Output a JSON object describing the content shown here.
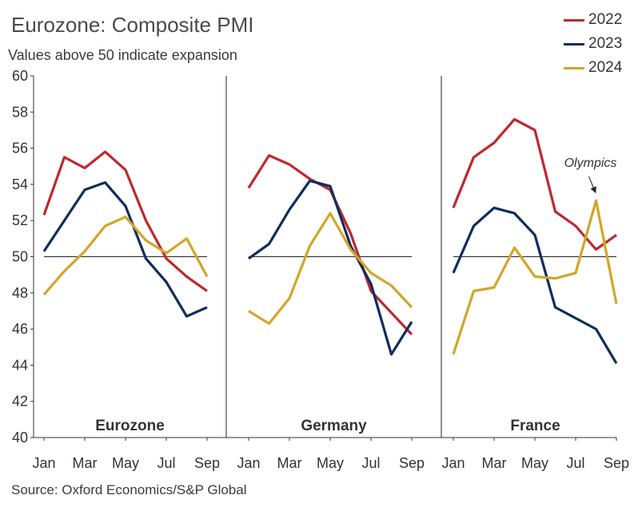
{
  "chart_data": {
    "type": "line",
    "title": "Eurozone: Composite PMI",
    "subtitle": "Values above 50 indicate expansion",
    "source": "Source: Oxford Economics/S&P Global",
    "ylim": [
      40,
      60
    ],
    "yticks": [
      "40",
      "42",
      "44",
      "46",
      "48",
      "50",
      "52",
      "54",
      "56",
      "58",
      "60"
    ],
    "reference_line": 50,
    "xticks": [
      "Jan",
      "Mar",
      "May",
      "Jul",
      "Sep"
    ],
    "categories": [
      "Jan",
      "Feb",
      "Mar",
      "Apr",
      "May",
      "Jun",
      "Jul",
      "Aug",
      "Sep"
    ],
    "legend_position": "top-right",
    "series_names": [
      "2022",
      "2023",
      "2024"
    ],
    "colors": {
      "2022": "#c1272d",
      "2023": "#0d2d5e",
      "2024": "#d4a52a"
    },
    "panels": [
      {
        "name": "Eurozone",
        "series": [
          {
            "name": "2022",
            "values": [
              52.3,
              55.5,
              54.9,
              55.8,
              54.8,
              52.0,
              49.9,
              48.9,
              48.1
            ]
          },
          {
            "name": "2023",
            "values": [
              50.3,
              52.0,
              53.7,
              54.1,
              52.8,
              49.9,
              48.6,
              46.7,
              47.2
            ]
          },
          {
            "name": "2024",
            "values": [
              47.9,
              49.2,
              50.3,
              51.7,
              52.2,
              50.9,
              50.2,
              51.0,
              48.9
            ]
          }
        ]
      },
      {
        "name": "Germany",
        "series": [
          {
            "name": "2022",
            "values": [
              53.8,
              55.6,
              55.1,
              54.3,
              53.7,
              51.3,
              48.1,
              46.9,
              45.7
            ]
          },
          {
            "name": "2023",
            "values": [
              49.9,
              50.7,
              52.6,
              54.2,
              53.9,
              50.6,
              48.5,
              44.6,
              46.4
            ]
          },
          {
            "name": "2024",
            "values": [
              47.0,
              46.3,
              47.7,
              50.6,
              52.4,
              50.4,
              49.1,
              48.4,
              47.2
            ]
          }
        ]
      },
      {
        "name": "France",
        "series": [
          {
            "name": "2022",
            "values": [
              52.7,
              55.5,
              56.3,
              57.6,
              57.0,
              52.5,
              51.7,
              50.4,
              51.2
            ]
          },
          {
            "name": "2023",
            "values": [
              49.1,
              51.7,
              52.7,
              52.4,
              51.2,
              47.2,
              46.6,
              46.0,
              44.1
            ]
          },
          {
            "name": "2024",
            "values": [
              44.6,
              48.1,
              48.3,
              50.5,
              48.9,
              48.8,
              49.1,
              53.1,
              47.4
            ]
          }
        ]
      }
    ],
    "annotation": {
      "text": "Olympics",
      "panel": "France",
      "series": "2024",
      "category": "Aug"
    }
  }
}
